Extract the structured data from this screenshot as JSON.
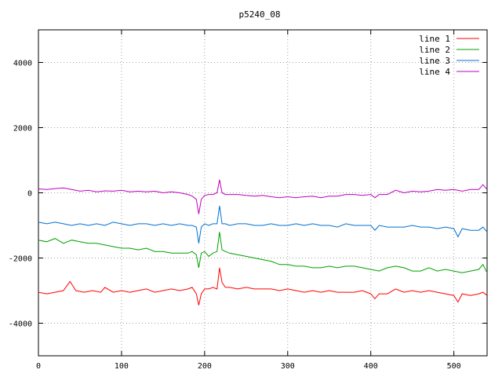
{
  "chart_data": {
    "type": "line",
    "title": "p5240_08",
    "xlabel": "",
    "ylabel": "",
    "xlim": [
      0,
      540
    ],
    "ylim": [
      -5000,
      5000
    ],
    "x_ticks": [
      0,
      100,
      200,
      300,
      400,
      500
    ],
    "y_ticks": [
      -4000,
      -2000,
      0,
      2000,
      4000
    ],
    "grid": true,
    "legend_position": "top-right",
    "series": [
      {
        "name": "line 1",
        "color": "#ff0000",
        "x": [
          0,
          10,
          20,
          30,
          38,
          45,
          55,
          65,
          75,
          80,
          90,
          100,
          110,
          120,
          130,
          140,
          150,
          160,
          170,
          180,
          185,
          190,
          193,
          196,
          200,
          205,
          210,
          215,
          218,
          221,
          225,
          230,
          240,
          250,
          260,
          270,
          280,
          290,
          300,
          310,
          320,
          330,
          340,
          350,
          360,
          370,
          380,
          390,
          400,
          405,
          410,
          420,
          430,
          440,
          450,
          460,
          470,
          480,
          490,
          500,
          505,
          510,
          520,
          530,
          535,
          540
        ],
        "values": [
          -3050,
          -3100,
          -3050,
          -3000,
          -2720,
          -3000,
          -3050,
          -3000,
          -3050,
          -2900,
          -3050,
          -3000,
          -3050,
          -3000,
          -2950,
          -3050,
          -3000,
          -2950,
          -3000,
          -2950,
          -2900,
          -3100,
          -3450,
          -3100,
          -2950,
          -2950,
          -2900,
          -2950,
          -2300,
          -2750,
          -2900,
          -2900,
          -2950,
          -2900,
          -2950,
          -2950,
          -2950,
          -3000,
          -2950,
          -3000,
          -3050,
          -3000,
          -3050,
          -3000,
          -3050,
          -3050,
          -3050,
          -3000,
          -3100,
          -3250,
          -3100,
          -3100,
          -2950,
          -3050,
          -3000,
          -3050,
          -3000,
          -3050,
          -3100,
          -3150,
          -3350,
          -3100,
          -3150,
          -3100,
          -3050,
          -3150
        ]
      },
      {
        "name": "line 2",
        "color": "#00a000",
        "x": [
          0,
          10,
          20,
          30,
          40,
          50,
          60,
          70,
          80,
          90,
          100,
          110,
          120,
          130,
          140,
          150,
          160,
          170,
          180,
          185,
          190,
          193,
          196,
          200,
          205,
          210,
          215,
          218,
          221,
          225,
          230,
          240,
          250,
          260,
          270,
          280,
          290,
          300,
          310,
          320,
          330,
          340,
          350,
          360,
          370,
          380,
          390,
          400,
          410,
          420,
          430,
          440,
          450,
          460,
          470,
          480,
          490,
          500,
          510,
          520,
          530,
          535,
          540
        ],
        "values": [
          -1450,
          -1500,
          -1400,
          -1550,
          -1450,
          -1500,
          -1550,
          -1550,
          -1600,
          -1650,
          -1700,
          -1700,
          -1750,
          -1700,
          -1800,
          -1800,
          -1850,
          -1850,
          -1850,
          -1800,
          -1900,
          -2300,
          -1850,
          -1800,
          -1950,
          -1850,
          -1800,
          -1200,
          -1750,
          -1800,
          -1850,
          -1900,
          -1950,
          -2000,
          -2050,
          -2100,
          -2200,
          -2200,
          -2250,
          -2250,
          -2300,
          -2300,
          -2250,
          -2300,
          -2250,
          -2250,
          -2300,
          -2350,
          -2400,
          -2300,
          -2250,
          -2300,
          -2400,
          -2400,
          -2300,
          -2400,
          -2350,
          -2400,
          -2450,
          -2400,
          -2350,
          -2200,
          -2450
        ]
      },
      {
        "name": "line 3",
        "color": "#0070d0",
        "x": [
          0,
          10,
          20,
          30,
          40,
          50,
          60,
          70,
          80,
          90,
          100,
          110,
          120,
          130,
          140,
          150,
          160,
          170,
          180,
          185,
          190,
          193,
          196,
          200,
          205,
          210,
          215,
          218,
          221,
          225,
          230,
          240,
          250,
          260,
          270,
          280,
          290,
          300,
          310,
          320,
          330,
          340,
          350,
          360,
          370,
          380,
          390,
          400,
          405,
          410,
          420,
          430,
          440,
          450,
          460,
          470,
          480,
          490,
          500,
          505,
          510,
          520,
          530,
          535,
          540
        ],
        "values": [
          -900,
          -950,
          -900,
          -950,
          -1000,
          -950,
          -1000,
          -950,
          -1000,
          -900,
          -950,
          -1000,
          -950,
          -950,
          -1000,
          -950,
          -1000,
          -950,
          -1000,
          -1000,
          -1050,
          -1550,
          -1050,
          -950,
          -1000,
          -950,
          -950,
          -400,
          -950,
          -950,
          -1000,
          -950,
          -950,
          -1000,
          -1000,
          -950,
          -1000,
          -1000,
          -950,
          -1000,
          -950,
          -1000,
          -1000,
          -1050,
          -950,
          -1000,
          -1000,
          -1000,
          -1150,
          -1000,
          -1050,
          -1050,
          -1050,
          -1000,
          -1050,
          -1050,
          -1100,
          -1050,
          -1100,
          -1350,
          -1100,
          -1150,
          -1150,
          -1050,
          -1200
        ]
      },
      {
        "name": "line 4",
        "color": "#c000c0",
        "x": [
          0,
          10,
          20,
          30,
          40,
          50,
          60,
          70,
          80,
          90,
          100,
          110,
          120,
          130,
          140,
          150,
          160,
          170,
          180,
          185,
          190,
          193,
          196,
          200,
          205,
          210,
          215,
          218,
          221,
          225,
          230,
          240,
          250,
          260,
          270,
          280,
          290,
          300,
          310,
          320,
          330,
          340,
          350,
          360,
          370,
          380,
          390,
          400,
          405,
          410,
          420,
          430,
          440,
          450,
          460,
          470,
          480,
          490,
          500,
          510,
          520,
          530,
          535,
          540
        ],
        "values": [
          120,
          100,
          130,
          150,
          100,
          50,
          80,
          30,
          60,
          50,
          80,
          30,
          50,
          30,
          50,
          0,
          30,
          0,
          -50,
          -100,
          -200,
          -650,
          -200,
          -80,
          -50,
          -50,
          0,
          400,
          0,
          -50,
          -50,
          -50,
          -80,
          -100,
          -80,
          -120,
          -150,
          -120,
          -150,
          -120,
          -100,
          -150,
          -100,
          -100,
          -50,
          -50,
          -80,
          -50,
          -150,
          -50,
          -50,
          80,
          0,
          50,
          30,
          50,
          100,
          80,
          100,
          50,
          100,
          100,
          250,
          100
        ]
      }
    ]
  }
}
